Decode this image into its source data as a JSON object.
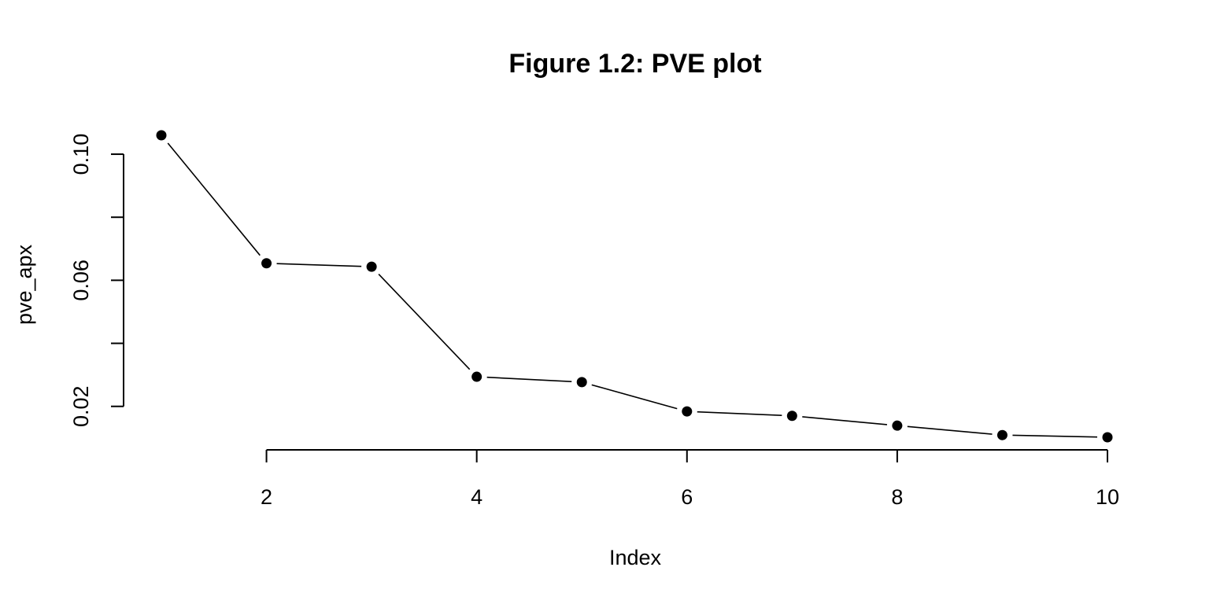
{
  "chart_data": {
    "type": "line",
    "title": "Figure 1.2: PVE plot",
    "xlabel": "Index",
    "ylabel": "pve_apx",
    "x": [
      1,
      2,
      3,
      4,
      5,
      6,
      7,
      8,
      9,
      10
    ],
    "series": [
      {
        "values": [
          0.106,
          0.0654,
          0.0643,
          0.0294,
          0.0277,
          0.0184,
          0.017,
          0.0139,
          0.0109,
          0.0102
        ]
      }
    ],
    "xlim": [
      1,
      10
    ],
    "ylim": [
      0.0102,
      0.106
    ],
    "x_ticks": [
      2,
      4,
      6,
      8,
      10
    ],
    "x_tick_labels": [
      "2",
      "4",
      "6",
      "8",
      "10"
    ],
    "y_ticks": [
      0.02,
      0.04,
      0.06,
      0.08,
      0.1
    ],
    "y_tick_labels": [
      "0.02",
      "",
      "0.06",
      "",
      "0.10"
    ],
    "style": "points-and-lines",
    "color": "#000000",
    "grid": false,
    "legend": "none"
  }
}
